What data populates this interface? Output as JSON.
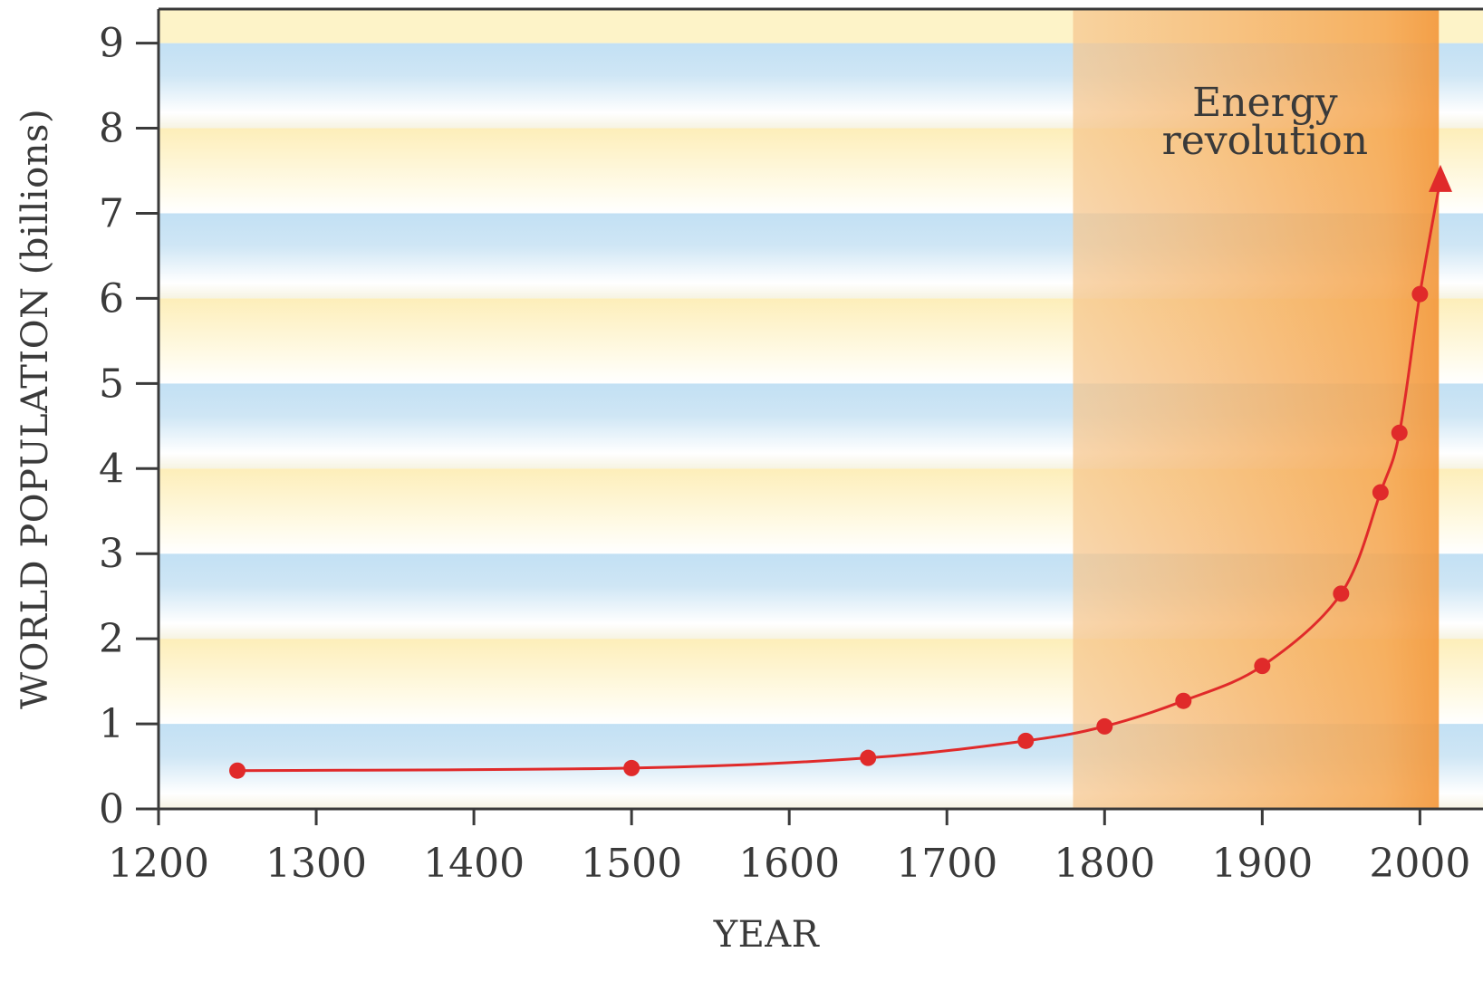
{
  "chart_data": {
    "type": "line",
    "title": "",
    "xlabel": "YEAR",
    "ylabel": "WORLD POPULATION (billions)",
    "xlim": [
      1200,
      2040
    ],
    "ylim": [
      0,
      9.4
    ],
    "x_ticks": [
      1200,
      1300,
      1400,
      1500,
      1600,
      1700,
      1800,
      1900,
      2000
    ],
    "y_ticks": [
      0,
      1,
      2,
      3,
      4,
      5,
      6,
      7,
      8,
      9
    ],
    "series": [
      {
        "x": [
          1250,
          1500,
          1650,
          1750,
          1800,
          1850,
          1900,
          1950,
          1975,
          1987,
          2000
        ],
        "y": [
          0.45,
          0.48,
          0.6,
          0.8,
          0.97,
          1.27,
          1.68,
          2.53,
          3.72,
          4.42,
          6.05
        ],
        "continues_to": {
          "x": 2013,
          "y": 7.4
        },
        "color": "#e02a2a",
        "markers": true,
        "arrow_end": true
      }
    ],
    "shaded_region": {
      "x_start": 1780,
      "x_end": 2012,
      "label": [
        "Energy",
        "revolution"
      ],
      "color": "#f4a24a"
    },
    "background_bands": {
      "band_height": 1,
      "colors": [
        "#bfe0f4",
        "#fdf0bf"
      ]
    },
    "grid": false,
    "legend": "none"
  }
}
